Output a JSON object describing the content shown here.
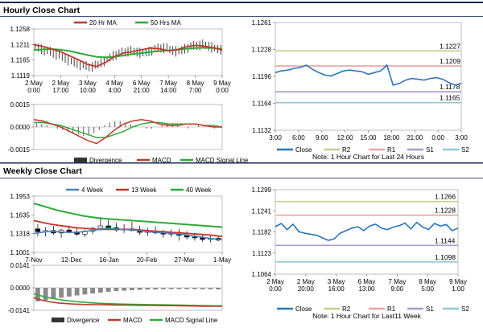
{
  "page": {
    "hourly_section_title": "Hourly Close Chart",
    "weekly_section_title": "Weekly Close Chart"
  },
  "colors": {
    "ma20": "#c0392b",
    "ma50": "#2eaa3a",
    "close": "#2e75b6",
    "r2": "#c4cf8a",
    "r1": "#e8a3a3",
    "s1": "#a99bc8",
    "s2": "#8ec9d8",
    "divergence": "#555555",
    "macd": "#c0392b",
    "signal": "#2eaa3a",
    "wk4": "#4f81bd",
    "wk13": "#c0392b",
    "wk40": "#2eaa3a",
    "section_bar": "#1a2a5a"
  },
  "chart_data": [
    {
      "id": "hourly_price",
      "type": "line",
      "legend": [
        "20 Hr MA",
        "50 Hrs MA"
      ],
      "x_ticks": [
        "2 May\n0:00",
        "2 May\n17:00",
        "3 May\n10:00",
        "4 May\n4:00",
        "6 May\n21:00",
        "7 May\n14:00",
        "8 May\n7:00",
        "9 May\n0:00"
      ],
      "y_ticks": [
        "1.1258",
        "1.1211",
        "1.1165",
        "1.1119"
      ],
      "ylim": [
        1.1119,
        1.1258
      ],
      "bars": [
        1.1205,
        1.1202,
        1.1198,
        1.1196,
        1.1193,
        1.119,
        1.1186,
        1.1183,
        1.1179,
        1.1175,
        1.1171,
        1.1166,
        1.1162,
        1.1158,
        1.1155,
        1.1152,
        1.115,
        1.1148,
        1.1146,
        1.1147,
        1.1149,
        1.1153,
        1.1158,
        1.1163,
        1.1168,
        1.1173,
        1.1178,
        1.1182,
        1.1185,
        1.1188,
        1.119,
        1.1192,
        1.1193,
        1.1192,
        1.119,
        1.1188,
        1.1186,
        1.1188,
        1.1191,
        1.1195,
        1.1198,
        1.12,
        1.1202,
        1.1203,
        1.1201,
        1.1198,
        1.1195,
        1.1192,
        1.1192,
        1.1195,
        1.1199,
        1.1203,
        1.1206,
        1.1208,
        1.121,
        1.1211,
        1.1212,
        1.121,
        1.1207,
        1.1204,
        1.1201,
        1.1198,
        1.1196
      ],
      "series": [
        {
          "name": "20 Hr MA",
          "values": [
            1.1211,
            1.1206,
            1.1198,
            1.119,
            1.1178,
            1.1166,
            1.1152,
            1.1146,
            1.1158,
            1.1176,
            1.1186,
            1.119,
            1.1196,
            1.1201,
            1.1199,
            1.1193,
            1.1196,
            1.1205,
            1.1209,
            1.1207,
            1.1202,
            1.1195
          ]
        },
        {
          "name": "50 Hrs MA",
          "values": [
            1.1195,
            1.1197,
            1.1198,
            1.1196,
            1.1192,
            1.1186,
            1.118,
            1.1175,
            1.1173,
            1.1175,
            1.1179,
            1.1183,
            1.1186,
            1.1189,
            1.1192,
            1.1194,
            1.1196,
            1.1199,
            1.1201,
            1.1202,
            1.1201,
            1.1198
          ]
        }
      ]
    },
    {
      "id": "hourly_macd",
      "type": "line",
      "y_ticks": [
        "0.0015",
        "0.0000",
        "-0.0015"
      ],
      "ylim": [
        -0.0015,
        0.0015
      ],
      "legend": [
        "Divergence",
        "MACD",
        "MACD Signal Line"
      ],
      "divergence": [
        0.0003,
        0.0002,
        0.0001,
        0,
        -0.0001,
        -0.0002,
        -0.0003,
        -0.0004,
        -0.0005,
        -0.0006,
        -0.0005,
        -0.0004,
        -0.0002,
        0.0001,
        0.0003,
        0.0004,
        0.0004,
        0.0003,
        0.0002,
        0.0001,
        0,
        -0.0001,
        -0.0001,
        0,
        0.0001,
        0.0002,
        0.0002,
        0.0001,
        0,
        -0.0001,
        0,
        0.0001,
        0.0001,
        0,
        -0.0001,
        0
      ],
      "series": [
        {
          "name": "MACD",
          "values": [
            0.0005,
            0.0004,
            0.0002,
            0,
            -0.0003,
            -0.0006,
            -0.0009,
            -0.0011,
            -0.0007,
            -0.0002,
            0.0002,
            0.0004,
            0.0005,
            0.0004,
            0.0002,
            0.0001,
            0.0001,
            0.0002,
            0.0002,
            0.0001,
            0,
            0
          ]
        },
        {
          "name": "MACD Signal Line",
          "values": [
            0.0003,
            0.0003,
            0.0002,
            0.0001,
            -0.0001,
            -0.0003,
            -0.0005,
            -0.0007,
            -0.0007,
            -0.0005,
            -0.0003,
            0,
            0.0002,
            0.0003,
            0.0003,
            0.0002,
            0.0002,
            0.0002,
            0.0002,
            0.0001,
            0.0001,
            0
          ]
        }
      ]
    },
    {
      "id": "hourly_levels",
      "type": "line",
      "x_ticks": [
        "3:00",
        "6:00",
        "9:00",
        "12:00",
        "15:00",
        "18:00",
        "21:00",
        "0:00",
        "3:00"
      ],
      "y_ticks": [
        "1.1261",
        "1.1228",
        "1.1196",
        "1.1164",
        "1.1132"
      ],
      "ylim": [
        1.1132,
        1.1261
      ],
      "levels": [
        {
          "name": "R2",
          "value": 1.1227,
          "label": "1.1227"
        },
        {
          "name": "R1",
          "value": 1.1209,
          "label": "1.1209"
        },
        {
          "name": "S1",
          "value": 1.1178,
          "label": "1.1178"
        },
        {
          "name": "S2",
          "value": 1.1165,
          "label": "1.1165"
        }
      ],
      "close": [
        1.1201,
        1.1203,
        1.1204,
        1.1206,
        1.1207,
        1.121,
        1.1205,
        1.1201,
        1.1198,
        1.1197,
        1.12,
        1.1203,
        1.1204,
        1.1203,
        1.1202,
        1.1199,
        1.1201,
        1.1203,
        1.121,
        1.1186,
        1.1188,
        1.1192,
        1.1194,
        1.1193,
        1.1192,
        1.1194,
        1.1195,
        1.1193,
        1.1189,
        1.1186,
        1.1188
      ],
      "legend": [
        "Close",
        "R2",
        "R1",
        "S1",
        "S2"
      ],
      "note": "Note: 1 Hour Chart for Last 24 Hours"
    },
    {
      "id": "weekly_price",
      "type": "line",
      "legend": [
        "4 Week",
        "13 Week",
        "40 Week"
      ],
      "x_ticks": [
        "7-Nov",
        "12-Dec",
        "16-Jan",
        "20-Feb",
        "27-Mar",
        "1-May"
      ],
      "y_ticks": [
        "1.1953",
        "1.1635",
        "1.1318",
        "1.1001"
      ],
      "ylim": [
        1.1001,
        1.1953
      ],
      "candles": [
        {
          "o": 1.14,
          "h": 1.148,
          "l": 1.128,
          "c": 1.135
        },
        {
          "o": 1.135,
          "h": 1.143,
          "l": 1.127,
          "c": 1.137
        },
        {
          "o": 1.137,
          "h": 1.145,
          "l": 1.13,
          "c": 1.133
        },
        {
          "o": 1.133,
          "h": 1.14,
          "l": 1.125,
          "c": 1.138
        },
        {
          "o": 1.138,
          "h": 1.146,
          "l": 1.132,
          "c": 1.135
        },
        {
          "o": 1.135,
          "h": 1.141,
          "l": 1.128,
          "c": 1.131
        },
        {
          "o": 1.131,
          "h": 1.139,
          "l": 1.126,
          "c": 1.136
        },
        {
          "o": 1.136,
          "h": 1.143,
          "l": 1.131,
          "c": 1.141
        },
        {
          "o": 1.141,
          "h": 1.16,
          "l": 1.137,
          "c": 1.145
        },
        {
          "o": 1.145,
          "h": 1.155,
          "l": 1.14,
          "c": 1.142
        },
        {
          "o": 1.142,
          "h": 1.15,
          "l": 1.135,
          "c": 1.138
        },
        {
          "o": 1.138,
          "h": 1.148,
          "l": 1.133,
          "c": 1.14
        },
        {
          "o": 1.14,
          "h": 1.152,
          "l": 1.136,
          "c": 1.137
        },
        {
          "o": 1.137,
          "h": 1.145,
          "l": 1.13,
          "c": 1.134
        },
        {
          "o": 1.134,
          "h": 1.142,
          "l": 1.128,
          "c": 1.136
        },
        {
          "o": 1.136,
          "h": 1.144,
          "l": 1.131,
          "c": 1.133
        },
        {
          "o": 1.133,
          "h": 1.138,
          "l": 1.125,
          "c": 1.131
        },
        {
          "o": 1.131,
          "h": 1.139,
          "l": 1.126,
          "c": 1.134
        },
        {
          "o": 1.134,
          "h": 1.14,
          "l": 1.12,
          "c": 1.129
        },
        {
          "o": 1.129,
          "h": 1.136,
          "l": 1.122,
          "c": 1.126
        },
        {
          "o": 1.126,
          "h": 1.133,
          "l": 1.12,
          "c": 1.125
        },
        {
          "o": 1.125,
          "h": 1.131,
          "l": 1.118,
          "c": 1.122
        },
        {
          "o": 1.122,
          "h": 1.13,
          "l": 1.117,
          "c": 1.124
        },
        {
          "o": 1.124,
          "h": 1.128,
          "l": 1.119,
          "c": 1.121
        }
      ],
      "series": [
        {
          "name": "4 Week",
          "values": [
            1.132,
            1.134,
            1.136,
            1.135,
            1.134,
            1.134,
            1.135,
            1.137,
            1.139,
            1.141,
            1.14,
            1.139,
            1.138,
            1.137,
            1.135,
            1.134,
            1.133,
            1.132,
            1.131,
            1.129,
            1.127,
            1.125,
            1.123,
            1.122
          ]
        },
        {
          "name": "13 Week",
          "values": [
            1.154,
            1.151,
            1.148,
            1.146,
            1.144,
            1.142,
            1.141,
            1.14,
            1.139,
            1.139,
            1.139,
            1.139,
            1.139,
            1.138,
            1.137,
            1.136,
            1.135,
            1.134,
            1.133,
            1.132,
            1.131,
            1.13,
            1.129,
            1.127
          ]
        },
        {
          "name": "40 Week",
          "values": [
            1.183,
            1.179,
            1.175,
            1.171,
            1.168,
            1.165,
            1.162,
            1.16,
            1.158,
            1.157,
            1.156,
            1.155,
            1.154,
            1.153,
            1.152,
            1.151,
            1.15,
            1.149,
            1.148,
            1.147,
            1.146,
            1.145,
            1.144,
            1.143
          ]
        }
      ]
    },
    {
      "id": "weekly_macd",
      "type": "line",
      "y_ticks": [
        "0.0141",
        "0.0000",
        "-0.0141"
      ],
      "ylim": [
        -0.0141,
        0.0141
      ],
      "legend": [
        "Divergence",
        "MACD",
        "MACD Signal Line"
      ],
      "divergence": [
        -0.0085,
        -0.0078,
        -0.007,
        -0.0062,
        -0.0055,
        -0.0048,
        -0.0042,
        -0.0036,
        -0.003,
        -0.0025,
        -0.0021,
        -0.0018,
        -0.0015,
        -0.0013,
        -0.0011,
        -0.001,
        -0.0009,
        -0.0008,
        -0.0008,
        -0.0008,
        -0.0008,
        -0.0009,
        -0.0009,
        -0.001
      ],
      "series": [
        {
          "name": "MACD",
          "values": [
            -0.0062,
            -0.0078,
            -0.0088,
            -0.0095,
            -0.0099,
            -0.0102,
            -0.0104,
            -0.0105,
            -0.0106,
            -0.0107,
            -0.0108,
            -0.0108,
            -0.0109,
            -0.011,
            -0.011,
            -0.0111,
            -0.0112,
            -0.0112,
            -0.0113,
            -0.0114,
            -0.0115,
            -0.0116,
            -0.0116,
            -0.0116
          ]
        },
        {
          "name": "MACD Signal Line",
          "values": [
            -0.0038,
            -0.0052,
            -0.0064,
            -0.0073,
            -0.008,
            -0.0086,
            -0.009,
            -0.0094,
            -0.0097,
            -0.0099,
            -0.0101,
            -0.0102,
            -0.0103,
            -0.0104,
            -0.0105,
            -0.0106,
            -0.0107,
            -0.0108,
            -0.0109,
            -0.011,
            -0.0111,
            -0.0112,
            -0.0113,
            -0.0113
          ]
        }
      ]
    },
    {
      "id": "weekly_levels",
      "type": "line",
      "x_ticks": [
        "2 May\n0:00",
        "2 May\n20:00",
        "3 May\n16:00",
        "6 May\n13:00",
        "7 May\n9:00",
        "8 May\n5:00",
        "9 May\n1:00"
      ],
      "y_ticks": [
        "1.1299",
        "1.1241",
        "1.1182",
        "1.1123",
        "1.1064"
      ],
      "ylim": [
        1.1064,
        1.1299
      ],
      "levels": [
        {
          "name": "R2",
          "value": 1.1266,
          "label": "1.1266"
        },
        {
          "name": "R1",
          "value": 1.1228,
          "label": "1.1228"
        },
        {
          "name": "S1",
          "value": 1.1144,
          "label": "1.1144"
        },
        {
          "name": "S2",
          "value": 1.1098,
          "label": "1.1098"
        }
      ],
      "close": [
        1.1196,
        1.1205,
        1.1188,
        1.1203,
        1.1182,
        1.1178,
        1.1175,
        1.1172,
        1.1165,
        1.1158,
        1.1162,
        1.1178,
        1.1185,
        1.1192,
        1.1196,
        1.1185,
        1.1198,
        1.1203,
        1.1192,
        1.1188,
        1.1195,
        1.1199,
        1.1206,
        1.119,
        1.1208,
        1.1195,
        1.1188,
        1.1205,
        1.1198,
        1.1202,
        1.1185,
        1.1192
      ],
      "legend": [
        "Close",
        "R2",
        "R1",
        "S1",
        "S2"
      ],
      "note": "Note: 1 Hour Chart for Last11 Week"
    }
  ]
}
